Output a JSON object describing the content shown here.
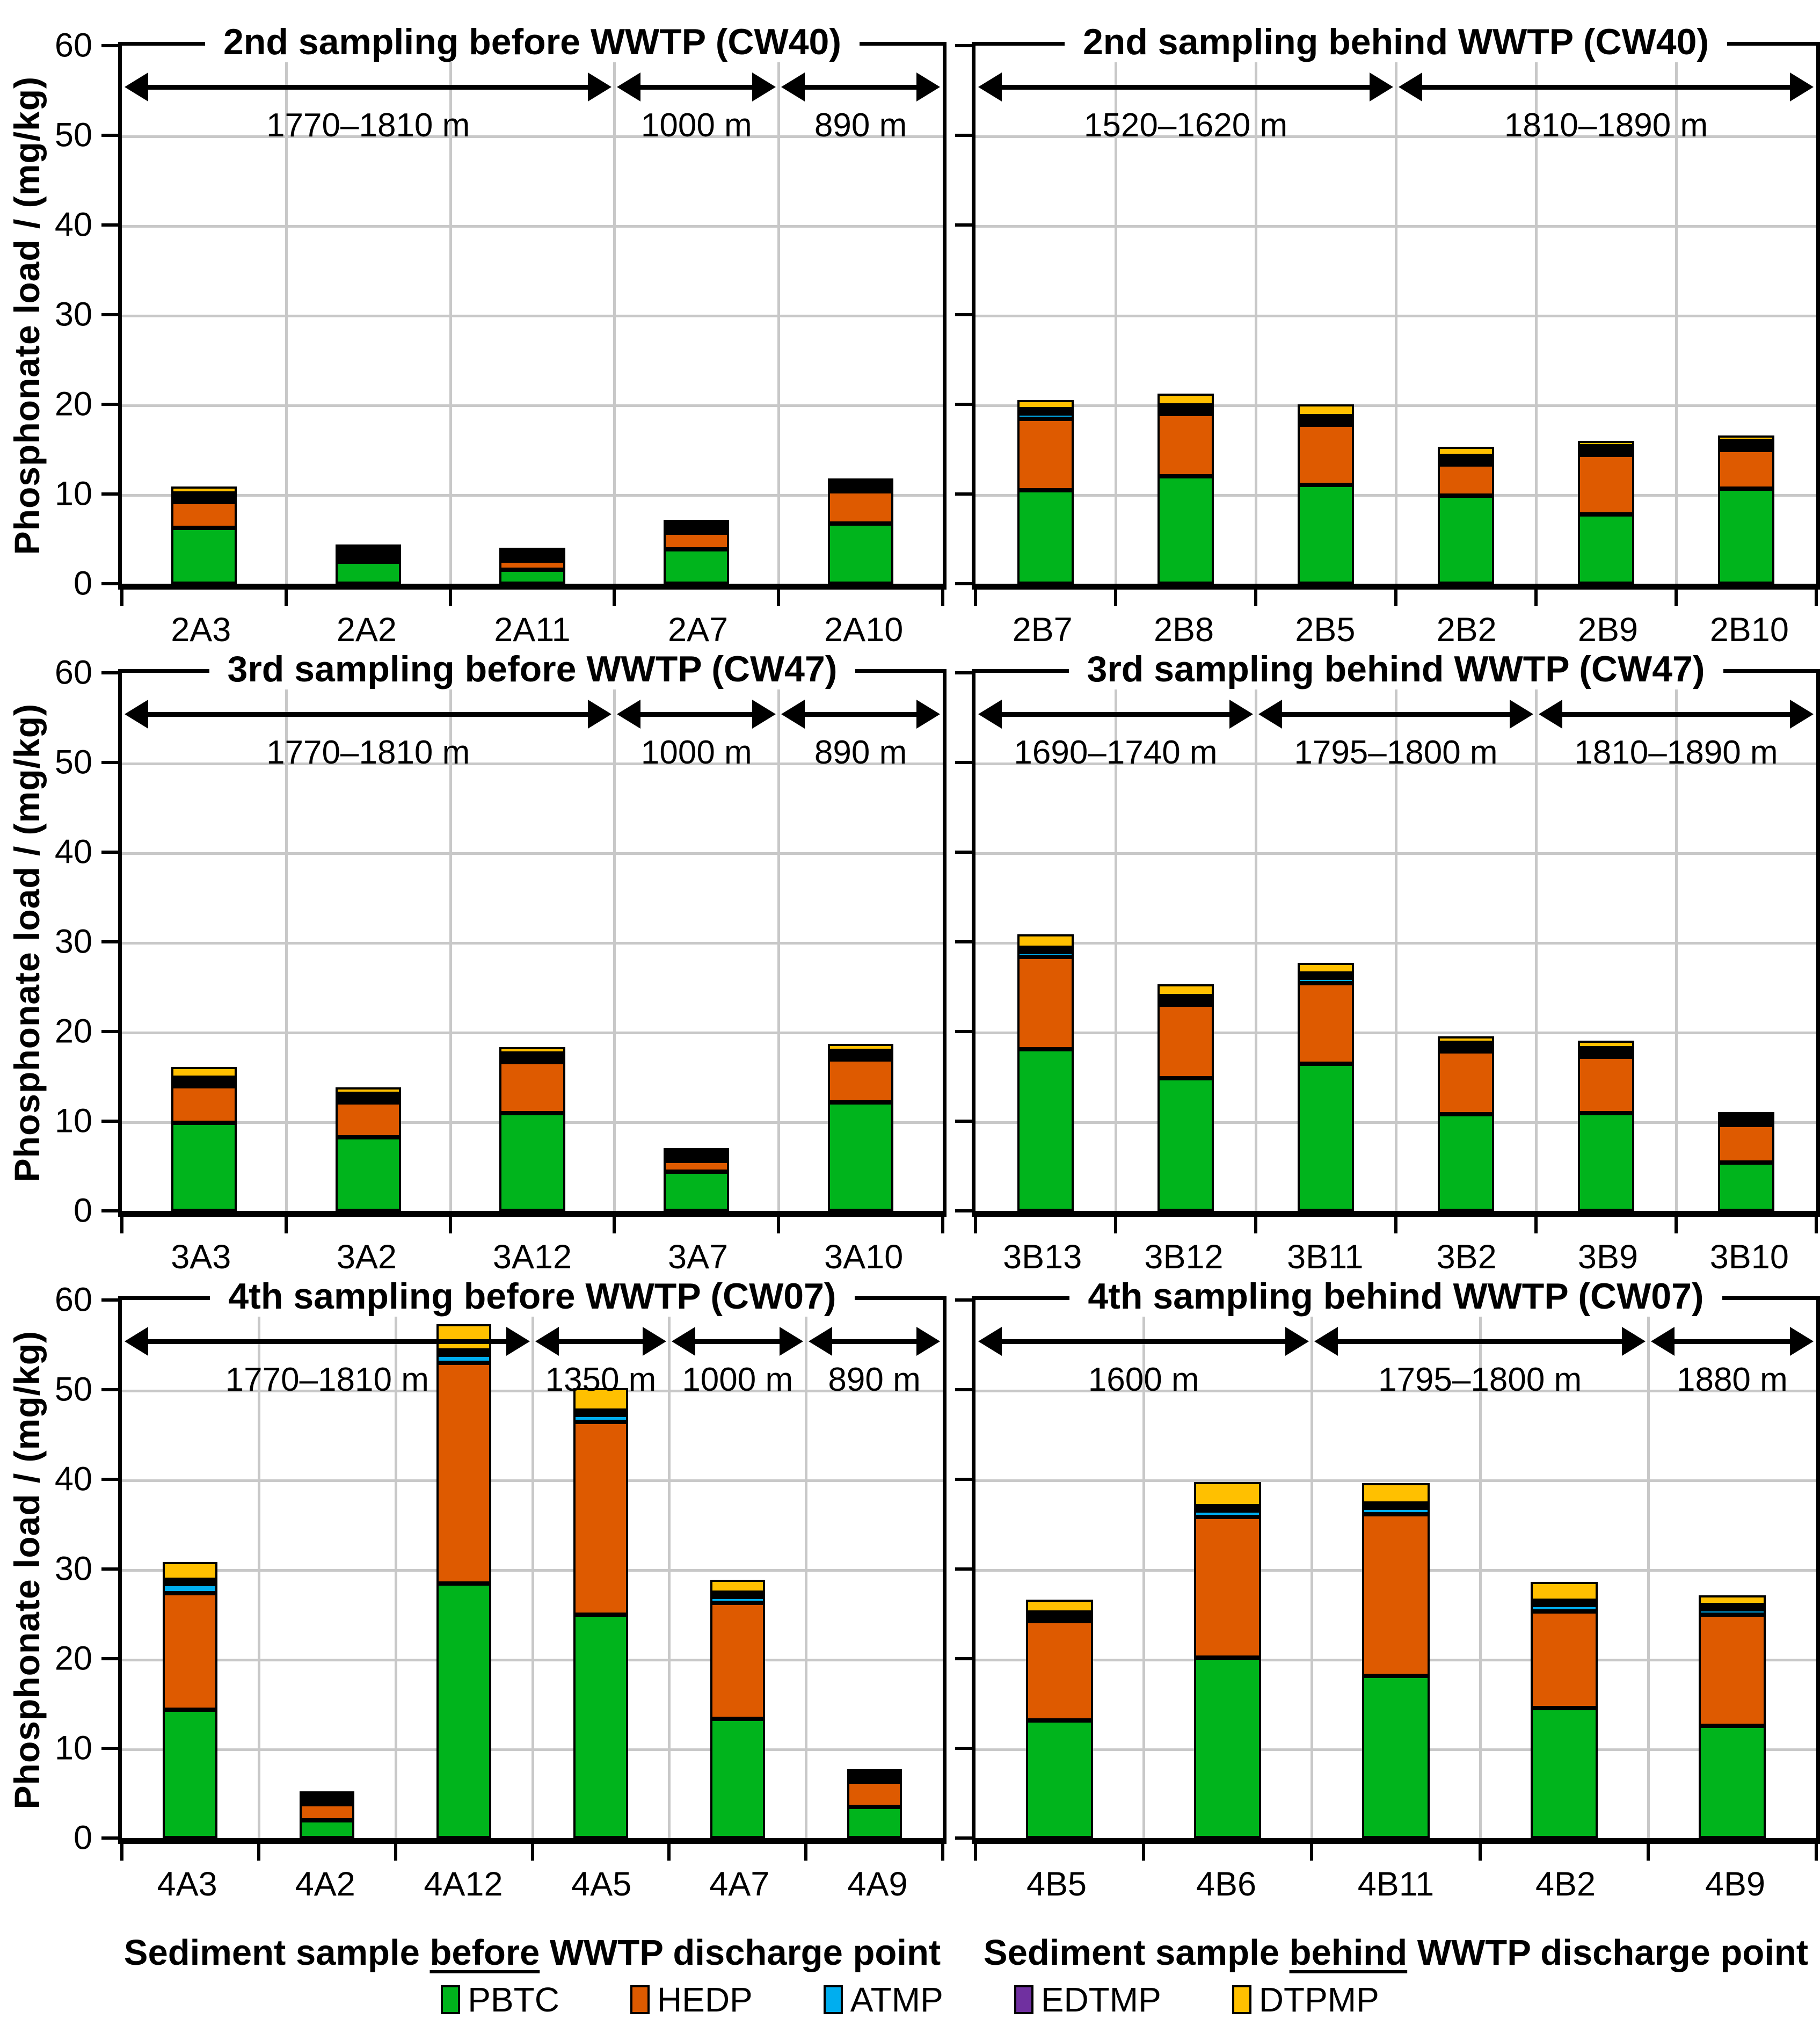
{
  "figure": {
    "y_axis_title": "Phosphonate load / (mg/kg)",
    "ylim": [
      0,
      60
    ],
    "yticks": [
      0,
      10,
      20,
      30,
      40,
      50,
      60
    ],
    "grid": true,
    "grid_color": "#C8C8C8",
    "bar_outline_color": "#000000",
    "x_title_left": {
      "prefix": "Sediment sample ",
      "underlined": "before",
      "suffix": " WWTP discharge point"
    },
    "x_title_right": {
      "prefix": "Sediment sample ",
      "underlined": "behind",
      "suffix": " WWTP discharge point"
    }
  },
  "legend": [
    {
      "label": "PBTC",
      "color": "#00B41C"
    },
    {
      "label": "HEDP",
      "color": "#DE5A00"
    },
    {
      "label": "ATMP",
      "color": "#00AEEF"
    },
    {
      "label": "EDTMP",
      "color": "#7030A0"
    },
    {
      "label": "DTPMP",
      "color": "#FFC000"
    }
  ],
  "chart_data": [
    {
      "type": "bar",
      "stacked": true,
      "title": "2nd sampling before WWTP (CW40)",
      "side": "left",
      "categories": [
        "2A3",
        "2A2",
        "2A11",
        "2A7",
        "2A10"
      ],
      "series": [
        {
          "name": "PBTC",
          "values": [
            6.2,
            2.45,
            1.55,
            3.85,
            6.7
          ]
        },
        {
          "name": "HEDP",
          "values": [
            2.9,
            0.2,
            1.05,
            1.85,
            3.6
          ]
        },
        {
          "name": "ATMP",
          "values": [
            0.35,
            0.03,
            0.04,
            0.15,
            0.25
          ]
        },
        {
          "name": "EDTMP",
          "values": [
            0.1,
            0.02,
            0.02,
            0.05,
            0.05
          ]
        },
        {
          "name": "DTPMP",
          "values": [
            0.8,
            0.05,
            0.09,
            0.3,
            0.5
          ]
        }
      ],
      "distance_segments": [
        {
          "from": 0,
          "to": 3,
          "label": "1770–1810 m"
        },
        {
          "from": 3,
          "to": 4,
          "label": "1000 m"
        },
        {
          "from": 4,
          "to": 5,
          "label": "890 m"
        }
      ]
    },
    {
      "type": "bar",
      "stacked": true,
      "title": "2nd sampling behind WWTP (CW40)",
      "side": "right",
      "categories": [
        "2B7",
        "2B8",
        "2B5",
        "2B2",
        "2B9",
        "2B10"
      ],
      "series": [
        {
          "name": "PBTC",
          "values": [
            10.4,
            12.0,
            11.0,
            9.8,
            7.7,
            10.6
          ]
        },
        {
          "name": "HEDP",
          "values": [
            8.0,
            6.9,
            6.7,
            3.5,
            6.7,
            4.3
          ]
        },
        {
          "name": "ATMP",
          "values": [
            0.6,
            0.5,
            0.5,
            0.4,
            0.3,
            0.4
          ]
        },
        {
          "name": "EDTMP",
          "values": [
            0.1,
            0.2,
            0.2,
            0.1,
            0.1,
            0.2
          ]
        },
        {
          "name": "DTPMP",
          "values": [
            1.0,
            1.3,
            1.3,
            1.0,
            0.6,
            0.7
          ]
        }
      ],
      "distance_segments": [
        {
          "from": 0,
          "to": 3,
          "label": "1520–1620 m"
        },
        {
          "from": 3,
          "to": 6,
          "label": "1810–1890 m"
        }
      ]
    },
    {
      "type": "bar",
      "stacked": true,
      "title": "3rd sampling before WWTP (CW47)",
      "side": "left",
      "categories": [
        "3A3",
        "3A2",
        "3A12",
        "3A7",
        "3A10"
      ],
      "series": [
        {
          "name": "PBTC",
          "values": [
            9.8,
            8.2,
            10.9,
            4.4,
            12.1
          ]
        },
        {
          "name": "HEDP",
          "values": [
            4.1,
            3.9,
            5.7,
            1.2,
            4.8
          ]
        },
        {
          "name": "ATMP",
          "values": [
            0.5,
            0.3,
            0.4,
            0.25,
            0.45
          ]
        },
        {
          "name": "EDTMP",
          "values": [
            0.1,
            0.1,
            0.1,
            0.05,
            0.1
          ]
        },
        {
          "name": "DTPMP",
          "values": [
            1.2,
            0.7,
            0.7,
            0.35,
            0.75
          ]
        }
      ],
      "distance_segments": [
        {
          "from": 0,
          "to": 3,
          "label": "1770–1810 m"
        },
        {
          "from": 3,
          "to": 4,
          "label": "1000 m"
        },
        {
          "from": 4,
          "to": 5,
          "label": "890 m"
        }
      ]
    },
    {
      "type": "bar",
      "stacked": true,
      "title": "3rd sampling behind WWTP (CW47)",
      "side": "right",
      "categories": [
        "3B13",
        "3B12",
        "3B11",
        "3B2",
        "3B9",
        "3B10"
      ],
      "series": [
        {
          "name": "PBTC",
          "values": [
            18.0,
            14.8,
            16.4,
            10.8,
            10.9,
            5.4
          ]
        },
        {
          "name": "HEDP",
          "values": [
            10.3,
            8.2,
            9.0,
            7.0,
            6.3,
            4.2
          ]
        },
        {
          "name": "ATMP",
          "values": [
            0.55,
            0.4,
            0.6,
            0.4,
            0.4,
            0.15
          ]
        },
        {
          "name": "EDTMP",
          "values": [
            0.35,
            0.3,
            0.2,
            0.1,
            0.2,
            0.05
          ]
        },
        {
          "name": "DTPMP",
          "values": [
            1.5,
            1.3,
            1.2,
            0.7,
            0.8,
            0.2
          ]
        }
      ],
      "distance_segments": [
        {
          "from": 0,
          "to": 2,
          "label": "1690–1740 m"
        },
        {
          "from": 2,
          "to": 4,
          "label": "1795–1800 m"
        },
        {
          "from": 4,
          "to": 6,
          "label": "1810–1890 m"
        }
      ]
    },
    {
      "type": "bar",
      "stacked": true,
      "title": "4th sampling before WWTP (CW07)",
      "side": "left",
      "categories": [
        "4A3",
        "4A2",
        "4A12",
        "4A5",
        "4A7",
        "4A9"
      ],
      "series": [
        {
          "name": "PBTC",
          "values": [
            14.3,
            2.0,
            28.4,
            24.9,
            13.3,
            3.5
          ]
        },
        {
          "name": "HEDP",
          "values": [
            13.0,
            1.8,
            24.6,
            21.5,
            12.9,
            2.8
          ]
        },
        {
          "name": "ATMP",
          "values": [
            1.0,
            0.05,
            0.9,
            0.8,
            0.7,
            0.1
          ]
        },
        {
          "name": "EDTMP",
          "values": [
            0.1,
            0.02,
            0.2,
            0.3,
            0.2,
            0.05
          ]
        },
        {
          "name": "DTPMP",
          "values": [
            2.0,
            0.08,
            2.9,
            2.5,
            1.4,
            0.15
          ]
        }
      ],
      "distance_segments": [
        {
          "from": 0,
          "to": 3,
          "label": "1770–1810 m"
        },
        {
          "from": 3,
          "to": 4,
          "label": "1350 m"
        },
        {
          "from": 4,
          "to": 5,
          "label": "1000 m"
        },
        {
          "from": 5,
          "to": 6,
          "label": "890 m"
        }
      ]
    },
    {
      "type": "bar",
      "stacked": true,
      "title": "4th sampling behind WWTP (CW07)",
      "side": "right",
      "categories": [
        "4B5",
        "4B6",
        "4B11",
        "4B2",
        "4B9"
      ],
      "series": [
        {
          "name": "PBTC",
          "values": [
            13.1,
            20.1,
            18.1,
            14.5,
            12.5
          ]
        },
        {
          "name": "HEDP",
          "values": [
            11.1,
            15.7,
            18.0,
            10.8,
            12.4
          ]
        },
        {
          "name": "ATMP",
          "values": [
            0.5,
            0.7,
            0.7,
            0.7,
            0.6
          ]
        },
        {
          "name": "EDTMP",
          "values": [
            0.1,
            0.2,
            0.2,
            0.1,
            0.1
          ]
        },
        {
          "name": "DTPMP",
          "values": [
            1.4,
            2.7,
            2.3,
            2.1,
            1.1
          ]
        }
      ],
      "distance_segments": [
        {
          "from": 0,
          "to": 2,
          "label": "1600 m"
        },
        {
          "from": 2,
          "to": 4,
          "label": "1795–1800 m"
        },
        {
          "from": 4,
          "to": 5,
          "label": "1880 m"
        }
      ]
    }
  ]
}
